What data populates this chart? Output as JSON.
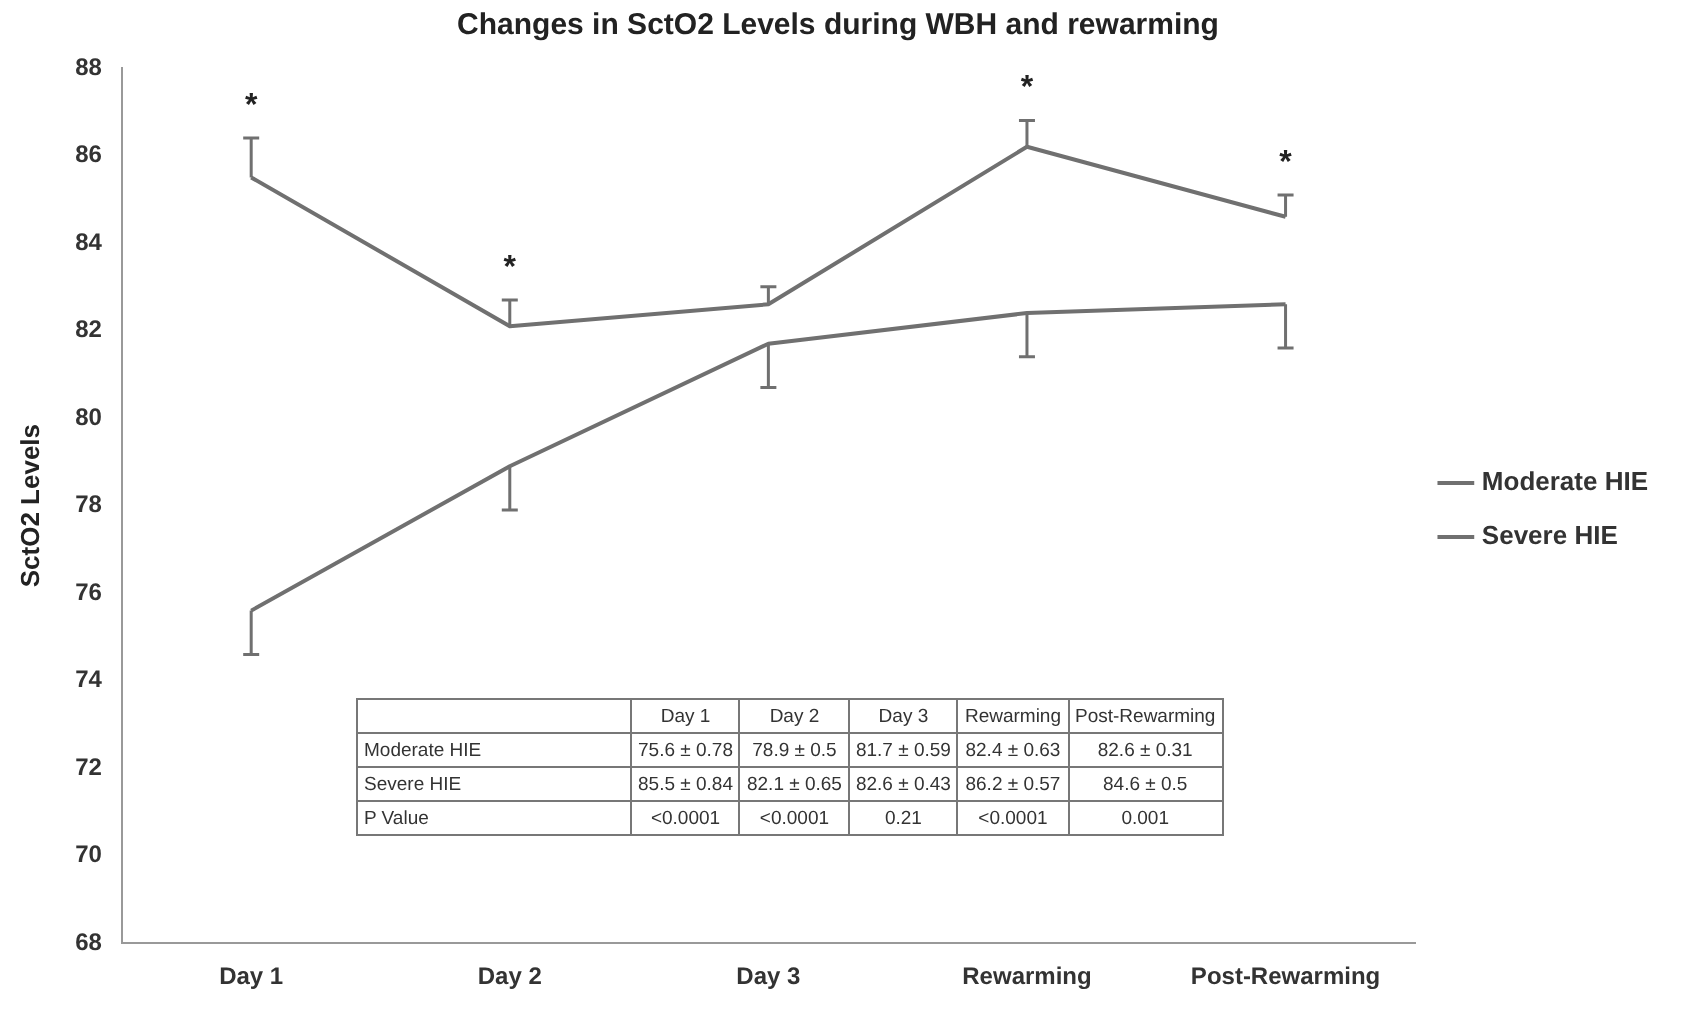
{
  "chart_data": {
    "type": "line",
    "title": "Changes in SctO2 Levels during WBH and rewarming",
    "ylabel": "SctO2 Levels",
    "categories": [
      "Day 1",
      "Day 2",
      "Day 3",
      "Rewarming",
      "Post-Rewarming"
    ],
    "ylim": [
      68,
      88
    ],
    "yticks": [
      68,
      70,
      72,
      74,
      76,
      78,
      80,
      82,
      84,
      86,
      88
    ],
    "grid": false,
    "legend": "right",
    "marker": "none",
    "line_style": "solid",
    "series": [
      {
        "name": "Moderate HIE",
        "color": "#707070",
        "values": [
          75.6,
          78.9,
          81.7,
          82.4,
          82.6
        ],
        "errors": [
          [
            74.6,
            75.6
          ],
          [
            77.9,
            78.9
          ],
          [
            80.7,
            81.7
          ],
          [
            81.4,
            82.4
          ],
          [
            81.6,
            82.6
          ]
        ]
      },
      {
        "name": "Severe HIE",
        "color": "#707070",
        "values": [
          85.5,
          82.1,
          82.6,
          86.2,
          84.6
        ],
        "errors": [
          [
            85.5,
            86.4
          ],
          [
            82.1,
            82.7
          ],
          [
            82.6,
            83.0
          ],
          [
            86.2,
            86.8
          ],
          [
            84.6,
            85.1
          ]
        ]
      }
    ],
    "annotations": [
      "75.6 ± 0.78",
      "78.9 ± 0.5",
      "81.7 ± 0.59",
      "82.4 ± 0.63",
      "82.6 ± 0.31",
      "85.5 ± 0.84",
      "82.1 ± 0.65",
      "82.6 ± 0.43",
      "86.2 ± 0.57",
      "84.6 ± 0.5",
      "P Value",
      "<0.0001",
      "<0.0001",
      "0.21",
      "<0.0001",
      "0.001",
      {
        "text": "*",
        "x": "Day 1",
        "y": 85.5
      },
      {
        "text": "*",
        "x": "Day 2",
        "y": 82.1
      },
      {
        "text": "*",
        "x": "Rewarming",
        "y": 86.2
      },
      {
        "text": "*",
        "x": "Post-Rewarming",
        "y": 84.6
      }
    ]
  }
}
